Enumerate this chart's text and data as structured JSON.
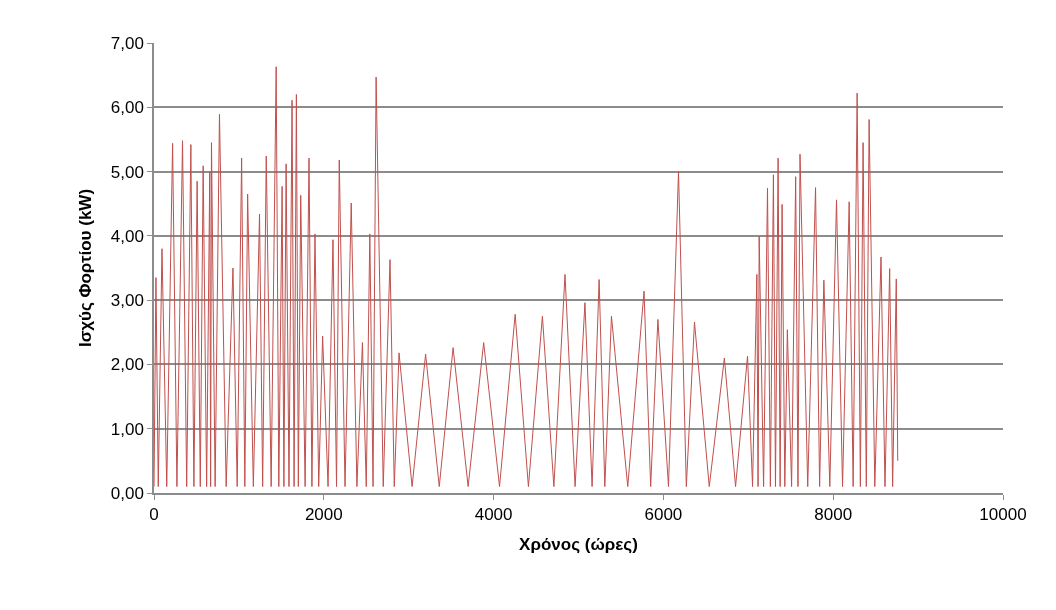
{
  "chart_data": {
    "type": "line",
    "xlabel": "Χρόνος (ώρες)",
    "ylabel": "Ισχύς Φορτίου (kW)",
    "x": [
      0,
      23,
      50,
      94,
      150,
      219,
      270,
      336,
      385,
      434,
      470,
      508,
      545,
      579,
      620,
      657,
      667,
      677,
      720,
      771,
      850,
      930,
      980,
      1032,
      1070,
      1103,
      1170,
      1243,
      1280,
      1322,
      1380,
      1439,
      1470,
      1509,
      1530,
      1556,
      1590,
      1626,
      1650,
      1677,
      1700,
      1728,
      1780,
      1826,
      1860,
      1896,
      1940,
      1986,
      2050,
      2108,
      2150,
      2182,
      2250,
      2323,
      2390,
      2455,
      2500,
      2542,
      2580,
      2616,
      2700,
      2780,
      2830,
      2886,
      3040,
      3199,
      3360,
      3523,
      3700,
      3883,
      4070,
      4254,
      4410,
      4575,
      4710,
      4841,
      4960,
      5076,
      5160,
      5243,
      5310,
      5388,
      5580,
      5772,
      5850,
      5935,
      6060,
      6178,
      6270,
      6366,
      6540,
      6718,
      6850,
      6991,
      7050,
      7101,
      7115,
      7128,
      7180,
      7226,
      7260,
      7296,
      7320,
      7351,
      7375,
      7398,
      7430,
      7460,
      7510,
      7558,
      7585,
      7609,
      7700,
      7792,
      7840,
      7890,
      7960,
      8039,
      8110,
      8188,
      8235,
      8282,
      8320,
      8352,
      8390,
      8423,
      8490,
      8563,
      8610,
      8665,
      8700,
      8743,
      8760
    ],
    "series": [
      {
        "color": "#c0504d",
        "values": [
          0.1,
          3.35,
          0.1,
          3.8,
          0.1,
          5.44,
          0.1,
          5.48,
          0.1,
          5.42,
          0.1,
          4.85,
          0.1,
          5.09,
          0.1,
          5.0,
          0.1,
          5.45,
          0.1,
          5.89,
          0.1,
          3.5,
          0.1,
          5.21,
          0.1,
          4.65,
          0.1,
          4.34,
          0.1,
          5.24,
          0.1,
          6.63,
          0.1,
          4.77,
          0.1,
          5.12,
          0.1,
          6.11,
          0.1,
          6.2,
          0.1,
          4.63,
          0.1,
          5.21,
          0.1,
          4.03,
          0.1,
          2.44,
          0.1,
          3.94,
          0.1,
          5.18,
          0.1,
          4.51,
          0.1,
          2.34,
          0.1,
          4.03,
          0.1,
          6.47,
          0.1,
          3.63,
          0.1,
          2.18,
          0.1,
          2.16,
          0.1,
          2.26,
          0.1,
          2.34,
          0.1,
          2.78,
          0.1,
          2.75,
          0.1,
          3.4,
          0.1,
          2.96,
          0.1,
          3.32,
          0.1,
          2.75,
          0.1,
          3.14,
          0.1,
          2.7,
          0.1,
          5.0,
          0.1,
          2.66,
          0.1,
          2.1,
          0.1,
          2.13,
          0.1,
          3.4,
          0.1,
          3.99,
          0.1,
          4.74,
          0.1,
          4.95,
          0.1,
          5.21,
          0.1,
          4.49,
          0.1,
          2.54,
          0.1,
          4.92,
          0.1,
          5.27,
          0.1,
          4.75,
          0.1,
          3.31,
          0.1,
          4.56,
          0.1,
          4.53,
          0.1,
          6.22,
          0.1,
          5.45,
          0.1,
          5.81,
          0.1,
          3.67,
          0.1,
          3.49,
          0.1,
          3.33,
          0.5
        ]
      }
    ],
    "xlim": [
      0,
      10000
    ],
    "xticks": [
      0,
      2000,
      4000,
      6000,
      8000,
      10000
    ],
    "ylim": [
      0,
      7
    ],
    "yticks": [
      {
        "value": 0,
        "label": "0,00"
      },
      {
        "value": 1,
        "label": "1,00"
      },
      {
        "value": 2,
        "label": "2,00"
      },
      {
        "value": 3,
        "label": "3,00"
      },
      {
        "value": 4,
        "label": "4,00"
      },
      {
        "value": 5,
        "label": "5,00"
      },
      {
        "value": 6,
        "label": "6,00"
      },
      {
        "value": 7,
        "label": "7,00"
      }
    ],
    "grid": "y",
    "marker": "none",
    "line_style": "solid"
  }
}
